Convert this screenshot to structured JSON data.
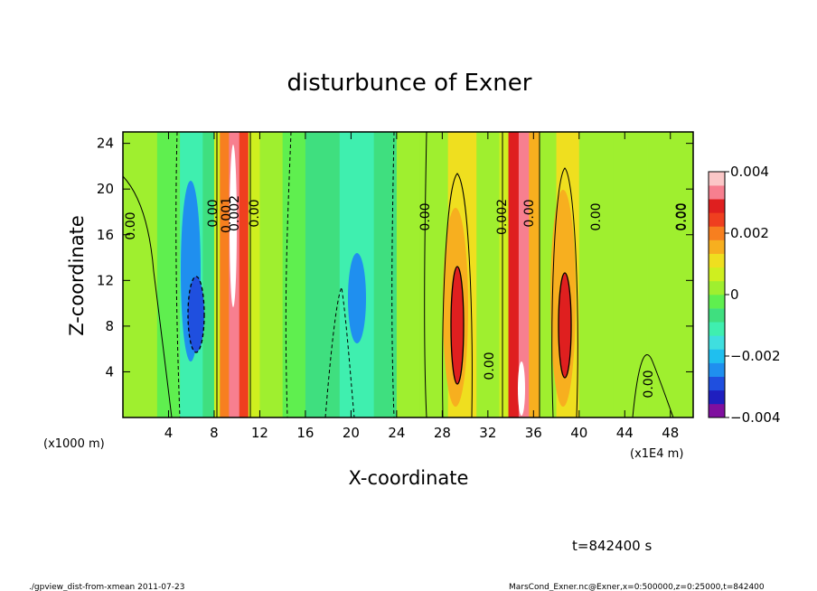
{
  "chart_data": {
    "type": "heatmap",
    "title": "disturbunce of Exner",
    "xlabel": "X-coordinate",
    "ylabel": "Z-coordinate",
    "x_unit_left": "(x1000 m)",
    "x_unit_right": "(x1E4 m)",
    "xticks": [
      4,
      8,
      12,
      16,
      20,
      24,
      28,
      32,
      36,
      40,
      44,
      48
    ],
    "yticks": [
      4,
      8,
      12,
      16,
      20,
      24
    ],
    "xlim": [
      0,
      50
    ],
    "ylim": [
      0,
      25
    ],
    "colorbar": {
      "tick_labels": [
        "0.004",
        "0.002",
        "0",
        "−0.002",
        "−0.004"
      ],
      "min": -0.004,
      "max": 0.004,
      "colors": [
        "#7f0f9f",
        "#1f1fbf",
        "#1f4fdf",
        "#1f8fef",
        "#1fbfef",
        "#3fdfdf",
        "#3fefaf",
        "#3fdf7f",
        "#5fef4f",
        "#9fef2f",
        "#cfef1f",
        "#efdf1f",
        "#f7af1f",
        "#f77f1f",
        "#ef3f1f",
        "#df1f1f",
        "#f77f8f",
        "#fbc7c7"
      ]
    },
    "contour_labels": [
      "0.00",
      "0.00",
      "0.001",
      "0.002",
      "0.00",
      "0.00",
      "0.002",
      "0.00",
      "0.00",
      "0.00",
      "0.00",
      "0.00",
      "0.00"
    ],
    "bands": [
      {
        "x": 0.0,
        "value": 0.0003
      },
      {
        "x": 3.0,
        "value": -0.0003
      },
      {
        "x": 5.0,
        "value": -0.0013
      },
      {
        "x": 7.0,
        "value": -0.0005
      },
      {
        "x": 8.0,
        "value": 0.0005
      },
      {
        "x": 8.5,
        "value": 0.002
      },
      {
        "x": 9.3,
        "value": 0.0035
      },
      {
        "x": 10.2,
        "value": 0.0025
      },
      {
        "x": 11.0,
        "value": 0.0008
      },
      {
        "x": 12.0,
        "value": 0.0002
      },
      {
        "x": 14.0,
        "value": -0.0002
      },
      {
        "x": 16.0,
        "value": -0.0007
      },
      {
        "x": 19.0,
        "value": -0.0011
      },
      {
        "x": 22.0,
        "value": -0.0007
      },
      {
        "x": 24.0,
        "value": 0.0
      },
      {
        "x": 26.0,
        "value": 0.0004
      },
      {
        "x": 28.5,
        "value": 0.0012
      },
      {
        "x": 31.0,
        "value": 0.0004
      },
      {
        "x": 33.0,
        "value": 0.0006
      },
      {
        "x": 33.8,
        "value": 0.003
      },
      {
        "x": 34.7,
        "value": 0.0035
      },
      {
        "x": 35.6,
        "value": 0.0015
      },
      {
        "x": 36.5,
        "value": 0.0004
      },
      {
        "x": 38.0,
        "value": 0.0012
      },
      {
        "x": 40.0,
        "value": 0.0004
      },
      {
        "x": 43.0,
        "value": 0.0002
      },
      {
        "x": 46.0,
        "value": 0.0003
      },
      {
        "x": 50.0,
        "value": 0.0003
      }
    ]
  },
  "footer": {
    "time": "t=842400 s",
    "left": "./gpview_dist-from-xmean  2011-07-23",
    "right": "MarsCond_Exner.nc@Exner,x=0:500000,z=0:25000,t=842400"
  }
}
